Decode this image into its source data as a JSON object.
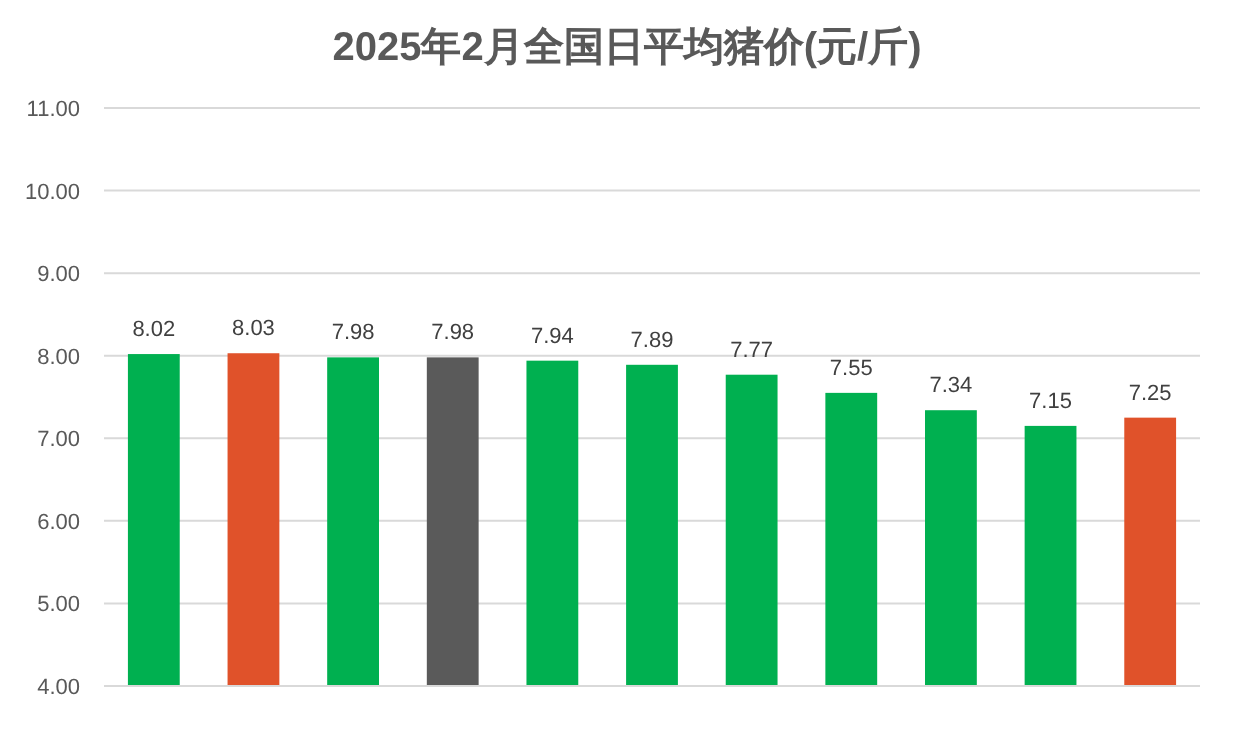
{
  "chart_data": {
    "type": "bar",
    "title": "2025年2月全国日平均猪价(元/斤)",
    "categories": [
      null,
      null,
      null,
      null,
      null,
      null,
      null,
      null,
      null,
      null,
      null
    ],
    "values": [
      8.02,
      8.03,
      7.98,
      7.98,
      7.94,
      7.89,
      7.77,
      7.55,
      7.34,
      7.15,
      7.25
    ],
    "colors": [
      "#00b050",
      "#e0522a",
      "#00b050",
      "#5a5a5a",
      "#00b050",
      "#00b050",
      "#00b050",
      "#00b050",
      "#00b050",
      "#00b050",
      "#e0522a"
    ],
    "ylim": [
      4,
      11
    ],
    "yticks": [
      {
        "value": 4,
        "label": "4.00"
      },
      {
        "value": 5,
        "label": "5.00"
      },
      {
        "value": 6,
        "label": "6.00"
      },
      {
        "value": 7,
        "label": "7.00"
      },
      {
        "value": 8,
        "label": "8.00"
      },
      {
        "value": 9,
        "label": "9.00"
      },
      {
        "value": 10,
        "label": "10.00"
      },
      {
        "value": 11,
        "label": "11.00"
      }
    ],
    "grid": "y",
    "data_labels": true
  }
}
